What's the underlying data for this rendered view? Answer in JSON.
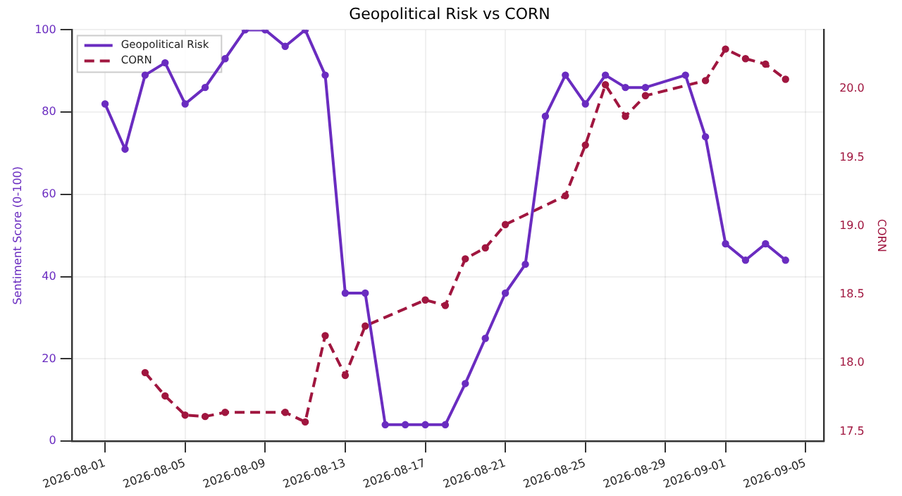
{
  "chart_data": {
    "type": "line",
    "title": "Geopolitical Risk vs CORN",
    "ylabel": "Sentiment Score (0-100)",
    "y2label": "CORN",
    "xlim": [
      "2026-07-30T08:00",
      "2026-09-05T22:00"
    ],
    "xticks": [
      "2026-08-01",
      "2026-08-05",
      "2026-08-09",
      "2026-08-13",
      "2026-08-17",
      "2026-08-21",
      "2026-08-25",
      "2026-08-29",
      "2026-09-01",
      "2026-09-05"
    ],
    "ylim": [
      0,
      100
    ],
    "yticks": [
      0,
      20,
      40,
      60,
      80,
      100
    ],
    "y2lim": [
      17.43,
      20.43
    ],
    "y2ticks": [
      {
        "value": 17.5,
        "label": "17.5"
      },
      {
        "value": 18,
        "label": "18.0"
      },
      {
        "value": 18.5,
        "label": "18.5"
      },
      {
        "value": 19,
        "label": "19.0"
      },
      {
        "value": 19.5,
        "label": "19.5"
      },
      {
        "value": 20,
        "label": "20.0"
      }
    ],
    "series": [
      {
        "name": "Geopolitical Risk",
        "color": "#6a2cc0",
        "line_style": "solid",
        "x": [
          "2026-08-01",
          "2026-08-02",
          "2026-08-03",
          "2026-08-04",
          "2026-08-05",
          "2026-08-06",
          "2026-08-07",
          "2026-08-08",
          "2026-08-09",
          "2026-08-10",
          "2026-08-11",
          "2026-08-12",
          "2026-08-13",
          "2026-08-14",
          "2026-08-15",
          "2026-08-16",
          "2026-08-17",
          "2026-08-18",
          "2026-08-19",
          "2026-08-20",
          "2026-08-21",
          "2026-08-22",
          "2026-08-23",
          "2026-08-24",
          "2026-08-25",
          "2026-08-26",
          "2026-08-27",
          "2026-08-28",
          "2026-08-30",
          "2026-08-31",
          "2026-09-01",
          "2026-09-02",
          "2026-09-03",
          "2026-09-04"
        ],
        "values": [
          82,
          71,
          89,
          92,
          82,
          86,
          93,
          100,
          100,
          96,
          100,
          89,
          36,
          36,
          4,
          4,
          4,
          4,
          14,
          25,
          36,
          43,
          79,
          89,
          82,
          89,
          86,
          86,
          89,
          74,
          48,
          44,
          48,
          44
        ]
      },
      {
        "name": "CORN",
        "color": "#a0163f",
        "line_style": "dashed",
        "axis": "y2",
        "x": [
          "2026-08-03",
          "2026-08-04",
          "2026-08-05",
          "2026-08-06",
          "2026-08-07",
          "2026-08-10",
          "2026-08-11",
          "2026-08-12",
          "2026-08-13",
          "2026-08-14",
          "2026-08-17",
          "2026-08-18",
          "2026-08-19",
          "2026-08-20",
          "2026-08-21",
          "2026-08-24",
          "2026-08-25",
          "2026-08-26",
          "2026-08-27",
          "2026-08-28",
          "2026-08-31",
          "2026-09-01",
          "2026-09-02",
          "2026-09-03",
          "2026-09-04"
        ],
        "values": [
          17.93,
          17.76,
          17.62,
          17.61,
          17.64,
          17.64,
          17.57,
          18.2,
          17.91,
          18.27,
          18.46,
          18.42,
          18.76,
          18.84,
          19.01,
          19.22,
          19.59,
          20.03,
          19.8,
          19.95,
          20.06,
          20.29,
          20.22,
          20.18,
          20.07
        ]
      }
    ],
    "grid": true,
    "legend": "top left",
    "marker": "circle"
  }
}
